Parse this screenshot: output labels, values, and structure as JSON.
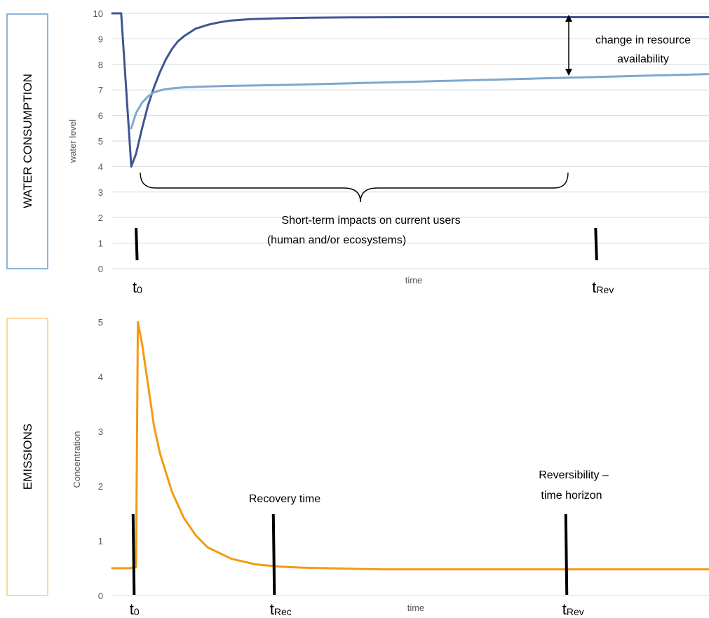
{
  "colors": {
    "dark_series": "#3f5593",
    "light_series": "#7ea8cf",
    "orange_series": "#f59a12",
    "grid": "#d9d9d9",
    "water_box": "#8fb3d6",
    "emissions_box": "#fbd6a0"
  },
  "chart_data": [
    {
      "type": "line",
      "panel_label": "WATER CONSUMPTION",
      "xlabel": "time",
      "ylabel": "water level",
      "ylim": [
        0,
        10
      ],
      "xlim": [
        0,
        100
      ],
      "yticks": [
        "0",
        "1",
        "2",
        "3",
        "4",
        "5",
        "6",
        "7",
        "8",
        "9",
        "10"
      ],
      "grid": true,
      "series": [
        {
          "color": "dark",
          "x": [
            0,
            1.5,
            3.2,
            4,
            5,
            6,
            7,
            8,
            9,
            10,
            11,
            12,
            14,
            16,
            18,
            20,
            23,
            27,
            33,
            40,
            50,
            60,
            80,
            100
          ],
          "values": [
            10,
            10,
            4,
            4.5,
            5.5,
            6.4,
            7.1,
            7.7,
            8.2,
            8.6,
            8.9,
            9.1,
            9.4,
            9.55,
            9.65,
            9.72,
            9.77,
            9.8,
            9.83,
            9.84,
            9.85,
            9.85,
            9.85,
            9.85
          ]
        },
        {
          "color": "light",
          "x": [
            3.2,
            4,
            5,
            6,
            7,
            8,
            9,
            10,
            12,
            15,
            20,
            30,
            40,
            50,
            60,
            70,
            80,
            90,
            100
          ],
          "values": [
            5.5,
            6.1,
            6.5,
            6.75,
            6.9,
            6.98,
            7.03,
            7.06,
            7.1,
            7.13,
            7.16,
            7.2,
            7.26,
            7.32,
            7.38,
            7.44,
            7.5,
            7.56,
            7.62
          ]
        }
      ],
      "markers": [
        {
          "label": "t",
          "sub": "0",
          "x": 4
        },
        {
          "label": "t",
          "sub": "Rev",
          "x": 81
        }
      ],
      "annotations": {
        "arrow_label_line1": "change in resource",
        "arrow_label_line2": "availability",
        "brace_label_line1": "Short-term  impacts  on  current  users",
        "brace_label_line2": "(human and/or ecosystems)"
      }
    },
    {
      "type": "line",
      "panel_label": "EMISSIONS",
      "xlabel": "time",
      "ylabel": "Concentration",
      "ylim": [
        0,
        5
      ],
      "xlim": [
        0,
        100
      ],
      "yticks": [
        "0",
        "1",
        "2",
        "3",
        "4",
        "5"
      ],
      "grid": false,
      "series": [
        {
          "color": "orange",
          "x": [
            0,
            3,
            4,
            4.3,
            5,
            6,
            7,
            8,
            10,
            12,
            14,
            16,
            20,
            24,
            28,
            32,
            36,
            40,
            45,
            50,
            60,
            80,
            100
          ],
          "values": [
            0.5,
            0.5,
            0.52,
            5,
            4.6,
            3.85,
            3.1,
            2.6,
            1.9,
            1.42,
            1.1,
            0.88,
            0.67,
            0.57,
            0.53,
            0.51,
            0.5,
            0.49,
            0.48,
            0.48,
            0.48,
            0.48,
            0.48
          ]
        }
      ],
      "markers": [
        {
          "label": "t",
          "sub": "0",
          "x": 3.5
        },
        {
          "label": "t",
          "sub": "Rec",
          "x": 27
        },
        {
          "label": "t",
          "sub": "Rev",
          "x": 76
        }
      ],
      "annotations": {
        "recovery_label": "Recovery time",
        "reversibility_line1": "Reversibility –",
        "reversibility_line2": "time horizon"
      }
    }
  ]
}
